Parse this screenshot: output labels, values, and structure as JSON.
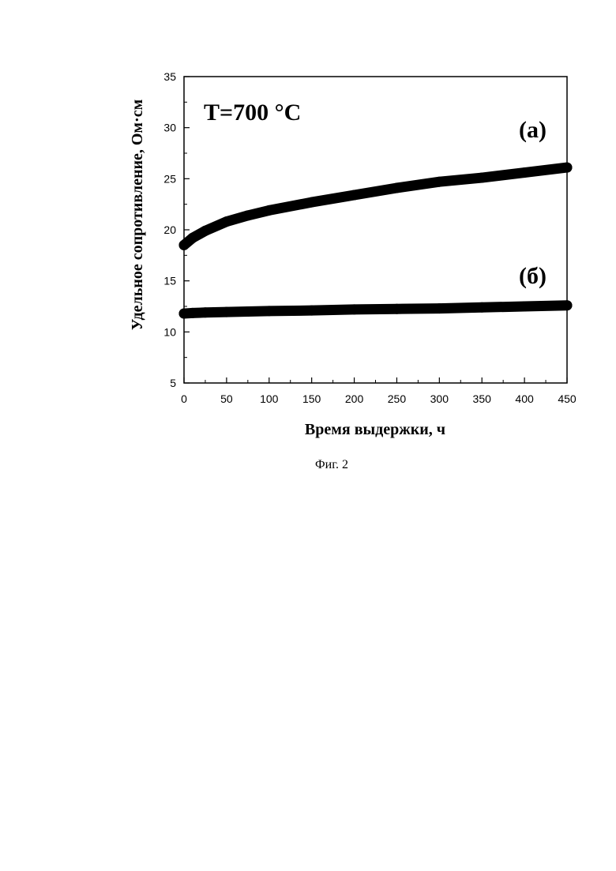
{
  "figure": {
    "caption": "Фиг. 2"
  },
  "chart_data": {
    "type": "line",
    "xlabel": "Время выдержки, ч",
    "ylabel": "Удельное сопротивление, Ом·см",
    "annotation": "T=700 °C",
    "xlim": [
      0,
      450
    ],
    "ylim": [
      5,
      35
    ],
    "x_ticks": [
      0,
      50,
      100,
      150,
      200,
      250,
      300,
      350,
      400,
      450
    ],
    "y_ticks": [
      5,
      10,
      15,
      20,
      25,
      30,
      35
    ],
    "grid": false,
    "x": [
      0,
      10,
      25,
      50,
      75,
      100,
      150,
      200,
      250,
      300,
      350,
      400,
      450
    ],
    "series": [
      {
        "name": "(а)",
        "values": [
          18.5,
          19.2,
          19.9,
          20.8,
          21.4,
          21.9,
          22.7,
          23.4,
          24.1,
          24.7,
          25.1,
          25.6,
          26.1
        ]
      },
      {
        "name": "(б)",
        "values": [
          11.8,
          11.85,
          11.9,
          11.95,
          12.0,
          12.05,
          12.1,
          12.2,
          12.25,
          12.3,
          12.4,
          12.5,
          12.6
        ]
      }
    ],
    "colors": {
      "line": "#000000"
    }
  }
}
